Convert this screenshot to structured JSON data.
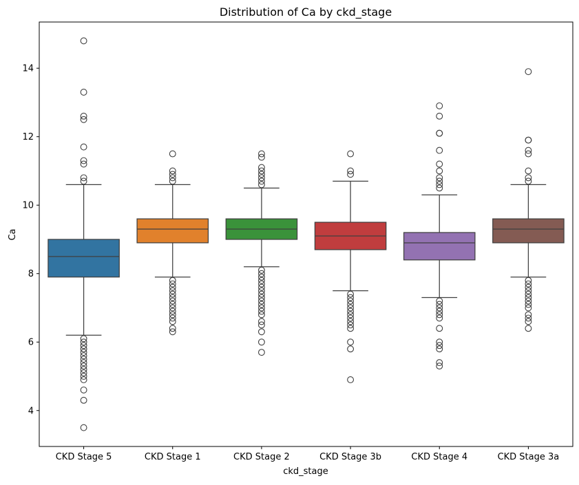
{
  "chart_data": {
    "type": "box",
    "title": "Distribution of Ca by ckd_stage",
    "xlabel": "ckd_stage",
    "ylabel": "Ca",
    "ylim": [
      2.95,
      15.35
    ],
    "yticks": [
      4,
      6,
      8,
      10,
      12,
      14
    ],
    "grid": false,
    "legend": "none",
    "categories": [
      "CKD Stage 5",
      "CKD Stage 1",
      "CKD Stage 2",
      "CKD Stage 3b",
      "CKD Stage 4",
      "CKD Stage 3a"
    ],
    "boxes": [
      {
        "category": "CKD Stage 5",
        "color": "#3274a1",
        "whisker_low": 6.2,
        "q1": 7.9,
        "median": 8.5,
        "q3": 9.0,
        "whisker_high": 10.6,
        "outliers": [
          14.8,
          13.3,
          12.6,
          12.5,
          11.7,
          11.3,
          11.2,
          10.8,
          10.7,
          6.1,
          6.0,
          5.9,
          5.8,
          5.7,
          5.6,
          5.5,
          5.4,
          5.3,
          5.2,
          5.1,
          5.0,
          4.9,
          4.6,
          4.3,
          3.5
        ]
      },
      {
        "category": "CKD Stage 1",
        "color": "#e1812c",
        "whisker_low": 7.9,
        "q1": 8.9,
        "median": 9.3,
        "q3": 9.6,
        "whisker_high": 10.6,
        "outliers": [
          11.5,
          11.0,
          10.9,
          10.8,
          10.7,
          7.8,
          7.7,
          7.6,
          7.5,
          7.4,
          7.3,
          7.2,
          7.1,
          7.0,
          6.9,
          6.8,
          6.7,
          6.6,
          6.4,
          6.3
        ]
      },
      {
        "category": "CKD Stage 2",
        "color": "#3a923a",
        "whisker_low": 8.2,
        "q1": 9.0,
        "median": 9.3,
        "q3": 9.6,
        "whisker_high": 10.5,
        "outliers": [
          11.5,
          11.4,
          11.1,
          11.0,
          10.9,
          10.8,
          10.7,
          10.6,
          8.1,
          8.0,
          7.9,
          7.8,
          7.7,
          7.6,
          7.5,
          7.4,
          7.3,
          7.2,
          7.1,
          7.0,
          6.9,
          6.8,
          6.6,
          6.5,
          6.3,
          6.0,
          5.7
        ]
      },
      {
        "category": "CKD Stage 3b",
        "color": "#c03d3e",
        "whisker_low": 7.5,
        "q1": 8.7,
        "median": 9.1,
        "q3": 9.5,
        "whisker_high": 10.7,
        "outliers": [
          11.5,
          11.0,
          10.9,
          7.4,
          7.3,
          7.2,
          7.1,
          7.0,
          6.9,
          6.8,
          6.7,
          6.6,
          6.5,
          6.4,
          6.0,
          5.8,
          4.9
        ]
      },
      {
        "category": "CKD Stage 4",
        "color": "#9372b2",
        "whisker_low": 7.3,
        "q1": 8.4,
        "median": 8.9,
        "q3": 9.2,
        "whisker_high": 10.3,
        "outliers": [
          12.9,
          12.6,
          12.1,
          12.1,
          11.6,
          11.2,
          11.0,
          10.8,
          10.7,
          10.6,
          10.5,
          7.2,
          7.1,
          7.0,
          6.9,
          6.8,
          6.7,
          6.4,
          6.0,
          5.9,
          5.8,
          5.4,
          5.3
        ]
      },
      {
        "category": "CKD Stage 3a",
        "color": "#845b53",
        "whisker_low": 7.9,
        "q1": 8.9,
        "median": 9.3,
        "q3": 9.6,
        "whisker_high": 10.6,
        "outliers": [
          13.9,
          11.9,
          11.9,
          11.6,
          11.5,
          11.0,
          10.8,
          10.7,
          7.8,
          7.7,
          7.6,
          7.5,
          7.4,
          7.3,
          7.2,
          7.1,
          7.0,
          6.8,
          6.7,
          6.6,
          6.4
        ]
      }
    ]
  }
}
